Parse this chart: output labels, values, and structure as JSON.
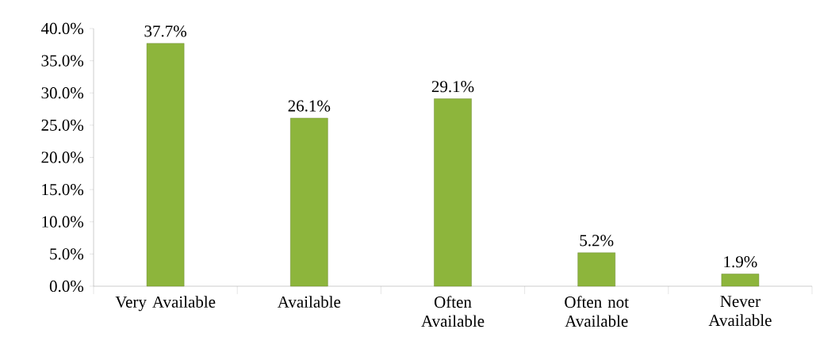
{
  "chart_data": {
    "type": "bar",
    "categories": [
      "Very Available",
      "Available",
      "Often Available",
      "Often not Available",
      "Never Available"
    ],
    "values": [
      37.7,
      26.1,
      29.1,
      5.2,
      1.9
    ],
    "value_labels": [
      "37.7%",
      "26.1%",
      "29.1%",
      "5.2%",
      "1.9%"
    ],
    "color": "#8db53c",
    "ylim": [
      0,
      40
    ],
    "yticks": [
      {
        "value": 0,
        "label": "0.0%"
      },
      {
        "value": 5,
        "label": "5.0%"
      },
      {
        "value": 10,
        "label": "10.0%"
      },
      {
        "value": 15,
        "label": "15.0%"
      },
      {
        "value": 20,
        "label": "20.0%"
      },
      {
        "value": 25,
        "label": "25.0%"
      },
      {
        "value": 30,
        "label": "30.0%"
      },
      {
        "value": 35,
        "label": "35.0%"
      },
      {
        "value": 40,
        "label": "40.0%"
      }
    ],
    "grid": false
  }
}
